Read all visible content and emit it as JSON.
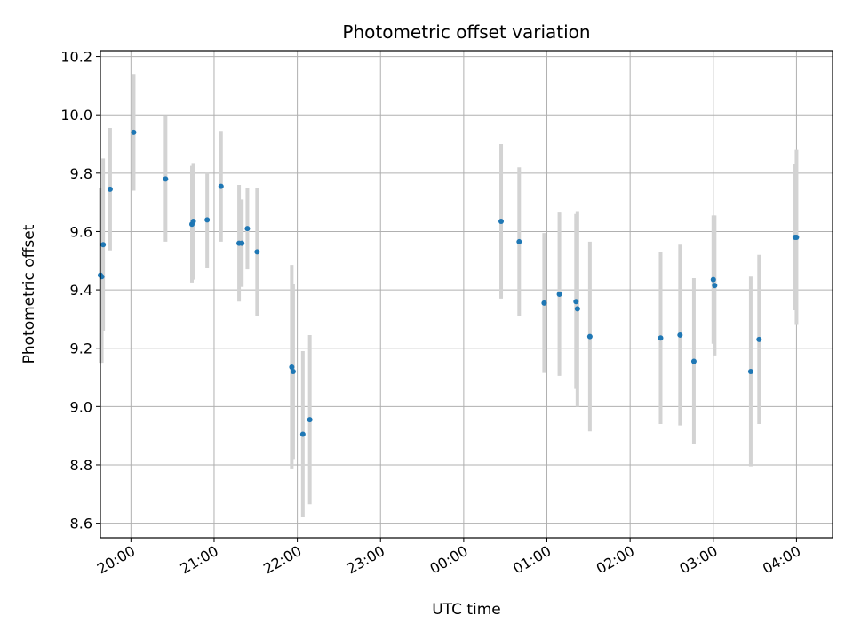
{
  "chart_data": {
    "type": "scatter",
    "title": "Photometric offset variation",
    "xlabel": "UTC time",
    "ylabel": "Photometric offset",
    "x_axis_type": "time",
    "x_start_date": "2000-01-01",
    "xlim": [
      "19:38",
      "04:26"
    ],
    "ylim": [
      8.55,
      10.22
    ],
    "x_ticks": [
      "20:00",
      "21:00",
      "22:00",
      "23:00",
      "00:00",
      "01:00",
      "02:00",
      "03:00",
      "04:00"
    ],
    "y_ticks": [
      8.6,
      8.8,
      9.0,
      9.2,
      9.4,
      9.6,
      9.8,
      10.0,
      10.2
    ],
    "y_tick_labels": [
      "8.6",
      "8.8",
      "9.0",
      "9.2",
      "9.4",
      "9.6",
      "9.8",
      "10.0",
      "10.2"
    ],
    "grid": true,
    "legend": "none",
    "series": [
      {
        "marker_color": "#1f77b4",
        "errorbar_color": "#d3d3d3",
        "points": [
          {
            "x": "19:38",
            "y": 9.45,
            "yerr": 0.3
          },
          {
            "x": "19:39",
            "y": 9.445,
            "yerr": 0.295
          },
          {
            "x": "19:40",
            "y": 9.555,
            "yerr": 0.295
          },
          {
            "x": "19:45",
            "y": 9.745,
            "yerr": 0.21
          },
          {
            "x": "20:02",
            "y": 9.94,
            "yerr": 0.2
          },
          {
            "x": "20:25",
            "y": 9.78,
            "yerr": 0.215
          },
          {
            "x": "20:44",
            "y": 9.625,
            "yerr": 0.2
          },
          {
            "x": "20:45",
            "y": 9.635,
            "yerr": 0.2
          },
          {
            "x": "20:55",
            "y": 9.64,
            "yerr": 0.165
          },
          {
            "x": "21:05",
            "y": 9.755,
            "yerr": 0.19
          },
          {
            "x": "21:18",
            "y": 9.56,
            "yerr": 0.2
          },
          {
            "x": "21:20",
            "y": 9.56,
            "yerr": 0.15
          },
          {
            "x": "21:24",
            "y": 9.61,
            "yerr": 0.14
          },
          {
            "x": "21:31",
            "y": 9.53,
            "yerr": 0.22
          },
          {
            "x": "21:56",
            "y": 9.135,
            "yerr": 0.35
          },
          {
            "x": "21:57",
            "y": 9.12,
            "yerr": 0.3
          },
          {
            "x": "22:04",
            "y": 8.905,
            "yerr": 0.285
          },
          {
            "x": "22:09",
            "y": 8.955,
            "yerr": 0.29
          },
          {
            "x": "00:27",
            "y": 9.635,
            "yerr": 0.265
          },
          {
            "x": "00:40",
            "y": 9.565,
            "yerr": 0.255
          },
          {
            "x": "00:58",
            "y": 9.355,
            "yerr": 0.24
          },
          {
            "x": "01:09",
            "y": 9.385,
            "yerr": 0.28
          },
          {
            "x": "01:21",
            "y": 9.36,
            "yerr": 0.3
          },
          {
            "x": "01:22",
            "y": 9.335,
            "yerr": 0.335
          },
          {
            "x": "01:31",
            "y": 9.24,
            "yerr": 0.325
          },
          {
            "x": "02:22",
            "y": 9.235,
            "yerr": 0.295
          },
          {
            "x": "02:36",
            "y": 9.245,
            "yerr": 0.31
          },
          {
            "x": "02:46",
            "y": 9.155,
            "yerr": 0.285
          },
          {
            "x": "03:00",
            "y": 9.435,
            "yerr": 0.22
          },
          {
            "x": "03:01",
            "y": 9.415,
            "yerr": 0.24
          },
          {
            "x": "03:27",
            "y": 9.12,
            "yerr": 0.325
          },
          {
            "x": "03:33",
            "y": 9.23,
            "yerr": 0.29
          },
          {
            "x": "03:59",
            "y": 9.58,
            "yerr": 0.25
          },
          {
            "x": "04:00",
            "y": 9.58,
            "yerr": 0.3
          }
        ]
      }
    ]
  }
}
